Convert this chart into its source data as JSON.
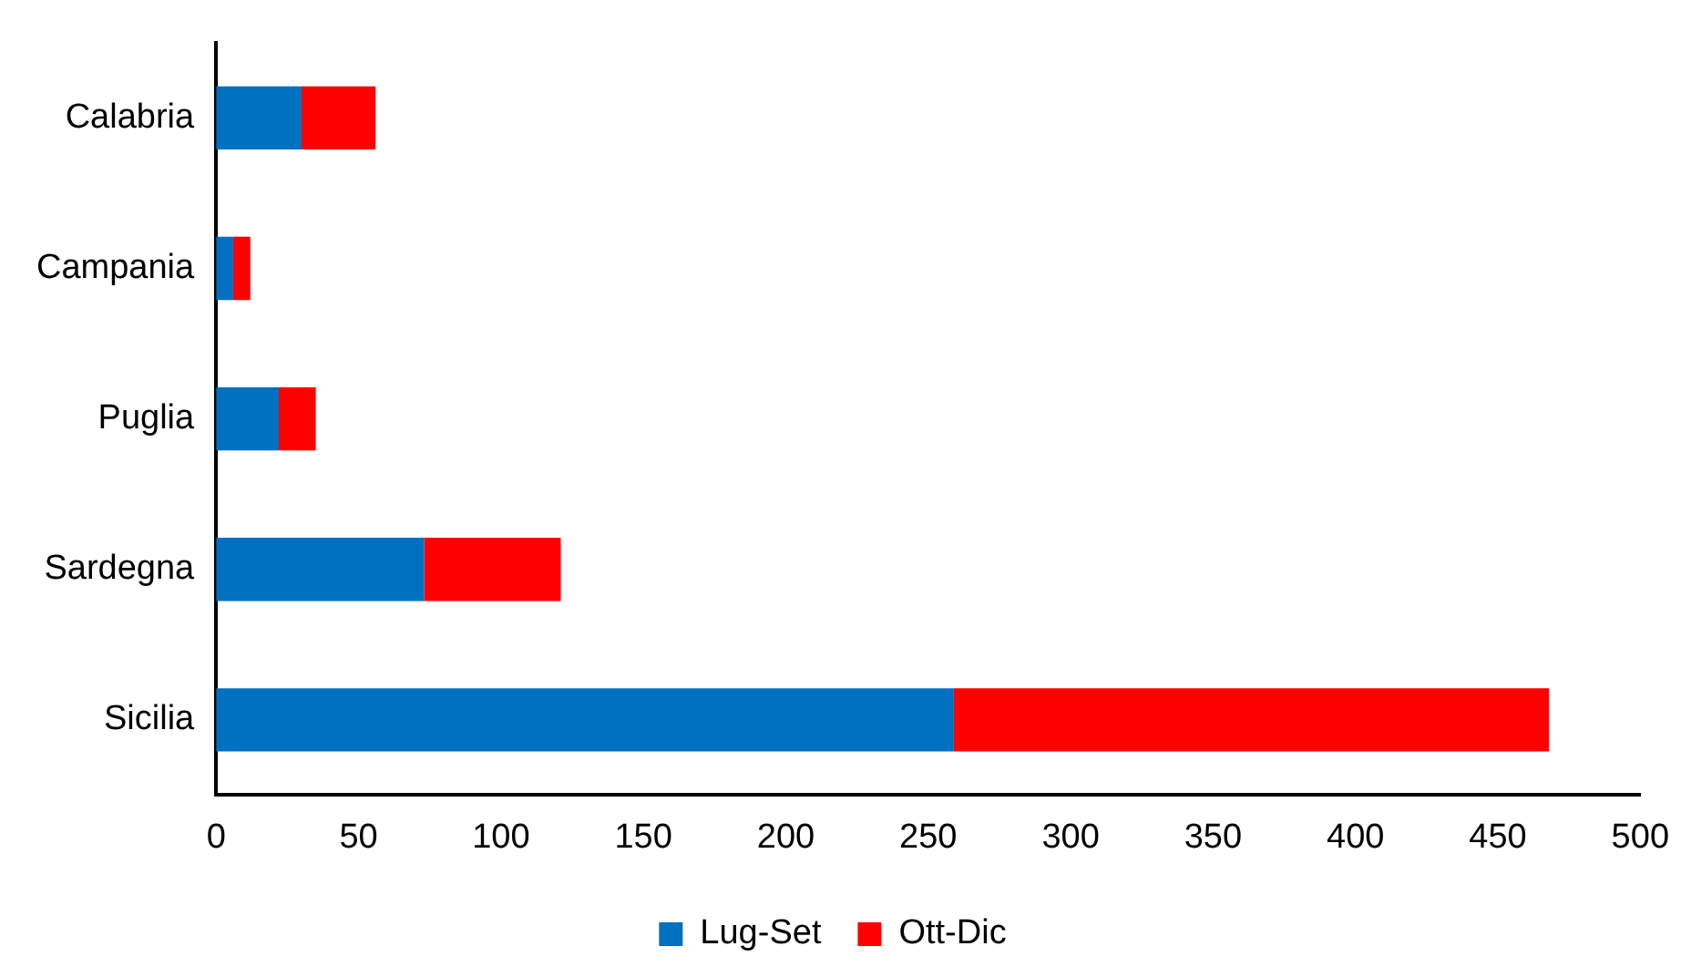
{
  "chart_data": {
    "type": "bar",
    "orientation": "horizontal",
    "stacked": true,
    "categories": [
      "Calabria",
      "Campania",
      "Puglia",
      "Sardegna",
      "Sicilia"
    ],
    "series": [
      {
        "name": "Lug-Set",
        "color": "#0070c0",
        "values": [
          30,
          6,
          22,
          73,
          259
        ]
      },
      {
        "name": "Ott-Dic",
        "color": "#ff0000",
        "values": [
          26,
          6,
          13,
          48,
          209
        ]
      }
    ],
    "xlim": [
      0,
      500
    ],
    "xticks": [
      0,
      50,
      100,
      150,
      200,
      250,
      300,
      350,
      400,
      450,
      500
    ],
    "grid": false,
    "legend": "bottom"
  }
}
